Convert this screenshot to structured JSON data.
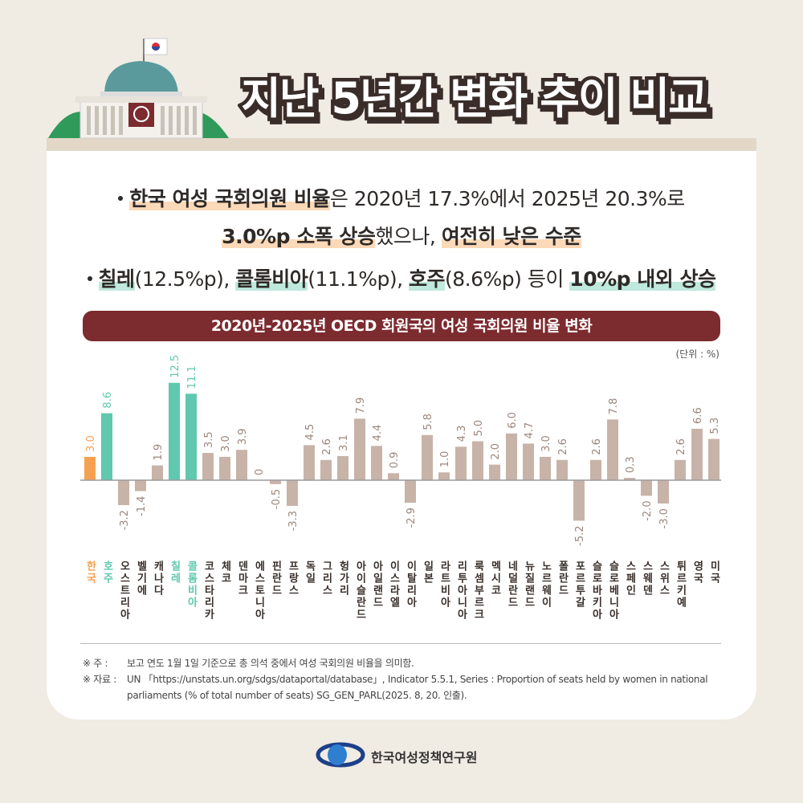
{
  "header": {
    "title": "지난 5년간 변화 추이 비교"
  },
  "bullets": [
    [
      "한국 여성 국회의원 비율",
      "은 2020년 17.3%에서 2025년 20.3%로"
    ],
    [
      "3.0%p 소폭 상승",
      "했으나, ",
      "여전히 낮은 수준"
    ],
    [
      "칠레",
      "(12.5%p), ",
      "콜롬비아",
      "(11.1%p), ",
      "호주",
      "(8.6%p) 등이 ",
      "10%p 내외 상승"
    ]
  ],
  "chart_data": {
    "type": "bar",
    "title": "2020년-2025년 OECD 회원국의 여성 국회의원 비율 변화",
    "unit": "(단위 : %)",
    "categories": [
      "한국",
      "호주",
      "오스트리아",
      "벨기에",
      "캐나다",
      "칠레",
      "콜롬비아",
      "코스타리카",
      "체코",
      "덴마크",
      "에스토니아",
      "핀란드",
      "프랑스",
      "독일",
      "그리스",
      "헝가리",
      "아이슬란드",
      "아일랜드",
      "이스라엘",
      "이탈리아",
      "일본",
      "라트비아",
      "리투아니아",
      "룩셈부르크",
      "멕시코",
      "네덜란드",
      "뉴질랜드",
      "노르웨이",
      "폴란드",
      "포르투갈",
      "슬로바키아",
      "슬로베니아",
      "스페인",
      "스웨덴",
      "스위스",
      "튀르키예",
      "영국",
      "미국"
    ],
    "values": [
      3.0,
      8.6,
      -3.2,
      -1.4,
      1.9,
      12.5,
      11.1,
      3.5,
      3.0,
      3.9,
      0,
      -0.5,
      -3.3,
      4.5,
      2.6,
      3.1,
      7.9,
      4.4,
      0.9,
      -2.9,
      5.8,
      1.0,
      4.3,
      5.0,
      2.0,
      6.0,
      4.7,
      3.0,
      2.6,
      -5.2,
      2.6,
      7.8,
      0.3,
      -2.0,
      -3.0,
      2.6,
      6.6,
      5.3
    ],
    "value_labels": [
      "3.0",
      "8.6",
      "-3.2",
      "-1.4",
      "1.9",
      "12.5",
      "11.1",
      "3.5",
      "3.0",
      "3.9",
      "0",
      "-0.5",
      "-3.3",
      "4.5",
      "2.6",
      "3.1",
      "7.9",
      "4.4",
      "0.9",
      "-2.9",
      "5.8",
      "1.0",
      "4.3",
      "5.0",
      "2.0",
      "6.0",
      "4.7",
      "3.0",
      "2.6",
      "-5.2",
      "2.6",
      "7.8",
      "0.3",
      "-2.0",
      "-3.0",
      "2.6",
      "6.6",
      "5.3"
    ],
    "colors": [
      "#f5a150",
      "#5fc8ae",
      "#c8b3a9",
      "#c8b3a9",
      "#c8b3a9",
      "#5fc8ae",
      "#5fc8ae",
      "#c8b3a9",
      "#c8b3a9",
      "#c8b3a9",
      "#c8b3a9",
      "#c8b3a9",
      "#c8b3a9",
      "#c8b3a9",
      "#c8b3a9",
      "#c8b3a9",
      "#c8b3a9",
      "#c8b3a9",
      "#c8b3a9",
      "#c8b3a9",
      "#c8b3a9",
      "#c8b3a9",
      "#c8b3a9",
      "#c8b3a9",
      "#c8b3a9",
      "#c8b3a9",
      "#c8b3a9",
      "#c8b3a9",
      "#c8b3a9",
      "#c8b3a9",
      "#c8b3a9",
      "#c8b3a9",
      "#c8b3a9",
      "#c8b3a9",
      "#c8b3a9",
      "#c8b3a9",
      "#c8b3a9",
      "#c8b3a9"
    ],
    "ylim": [
      -8,
      13
    ]
  },
  "notes": [
    {
      "label": "※ 주  :",
      "text": "보고 연도 1월 1일 기준으로 총 의석 중에서 여성 국회의원 비율을 의미함."
    },
    {
      "label": "※ 자료 :",
      "text": "UN 「https://unstats.un.org/sdgs/dataportal/database」, Indicator 5.5.1, Series : Proportion of seats held by women in national parliaments (% of total number of seats) SG_GEN_PARL(2025. 8, 20. 인출)."
    }
  ],
  "footer": {
    "org": "한국여성정책연구원"
  }
}
